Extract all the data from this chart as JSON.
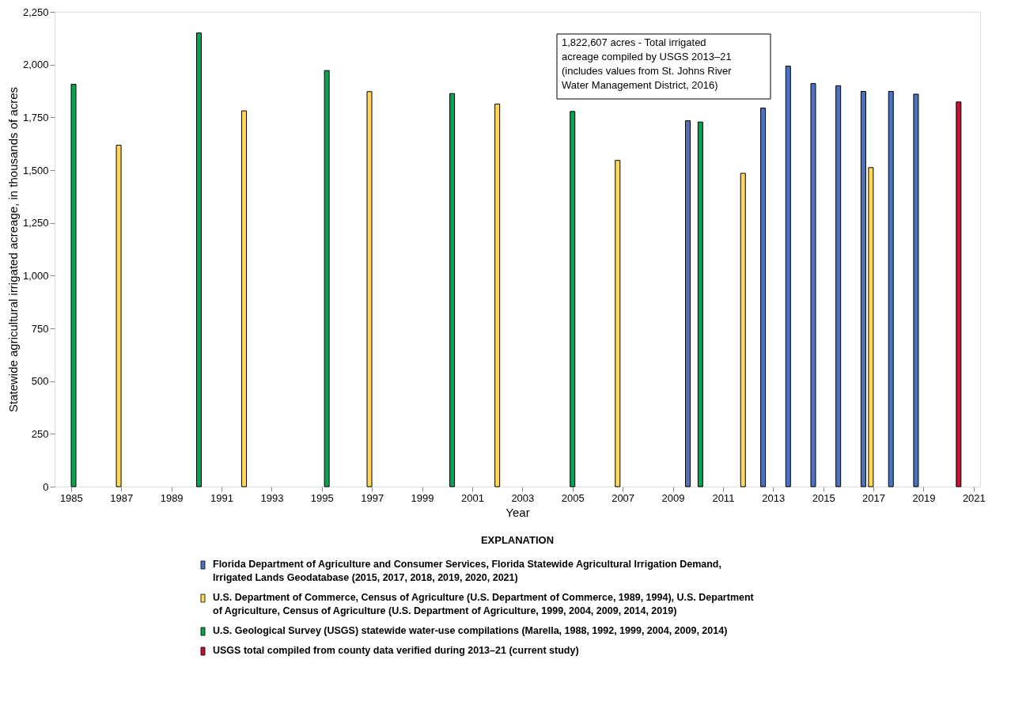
{
  "chart_data": {
    "type": "bar",
    "xlabel": "Year",
    "ylabel": "Statewide agricultural irrigated acreage, in thousands of acres",
    "legend_title": "EXPLANATION",
    "xlim": [
      1984.5,
      2021.1
    ],
    "xticks": [
      1985,
      1987,
      1989,
      1991,
      1993,
      1995,
      1997,
      1999,
      2001,
      2003,
      2005,
      2007,
      2009,
      2011,
      2013,
      2015,
      2017,
      2019,
      2021
    ],
    "ylim": [
      0,
      2250
    ],
    "yticks": [
      0,
      250,
      500,
      750,
      {
        "value": 1000,
        "label": "1,000"
      },
      {
        "value": 1250,
        "label": "1,250"
      },
      {
        "value": 1500,
        "label": "1,500"
      },
      {
        "value": 1750,
        "label": "1,750"
      },
      {
        "value": 2000,
        "label": "2,000"
      },
      {
        "value": 2250,
        "label": "2,250"
      }
    ],
    "grid": false,
    "legend": "bottom",
    "series": [
      {
        "name": "Florida Department of Agriculture and Consumer Services, Florida Statewide Agricultural Irrigation Demand, Irrigated Lands Geodatabase (2015, 2017, 2018, 2019, 2020, 2021)",
        "color": "#4a72c0",
        "x": [
          2009.6,
          2012.6,
          2013.6,
          2014.6,
          2015.6,
          2016.6,
          2017.7,
          2018.7
        ],
        "values": [
          1734,
          1794,
          1993,
          1910,
          1900,
          1873,
          1873,
          1860
        ]
      },
      {
        "name": "U.S. Department of Commerce, Census of Agriculture (U.S. Department of Commerce, 1989, 1994), U.S. Department of Agriculture, Census of Agriculture (U.S. Department of Agriculture, 1999, 2004, 2009, 2014, 2019)",
        "color": "#ffd75a",
        "x": [
          1986.9,
          1991.9,
          1996.9,
          2002.0,
          2006.8,
          2011.8,
          2016.9
        ],
        "values": [
          1618,
          1781,
          1872,
          1813,
          1546,
          1485,
          1512
        ]
      },
      {
        "name": "U.S. Geological Survey (USGS) statewide water-use compilations (Marella, 1988, 1992, 1999, 2004, 2009, 2014)",
        "color": "#00a651",
        "x": [
          1985.1,
          1990.1,
          1995.2,
          2000.2,
          2005.0,
          2010.1
        ],
        "values": [
          1907,
          2150,
          1972,
          1863,
          1778,
          1728
        ]
      },
      {
        "name": "USGS total compiled from county data verified during 2013–21 (current study)",
        "color": "#c8102e",
        "x": [
          2020.4
        ],
        "values": [
          1823
        ]
      }
    ],
    "annotations": [
      "1,822,607 acres - Total irrigated acreage compiled by USGS 2013–21 (includes values from St. Johns River Water Management District, 2016)"
    ]
  }
}
